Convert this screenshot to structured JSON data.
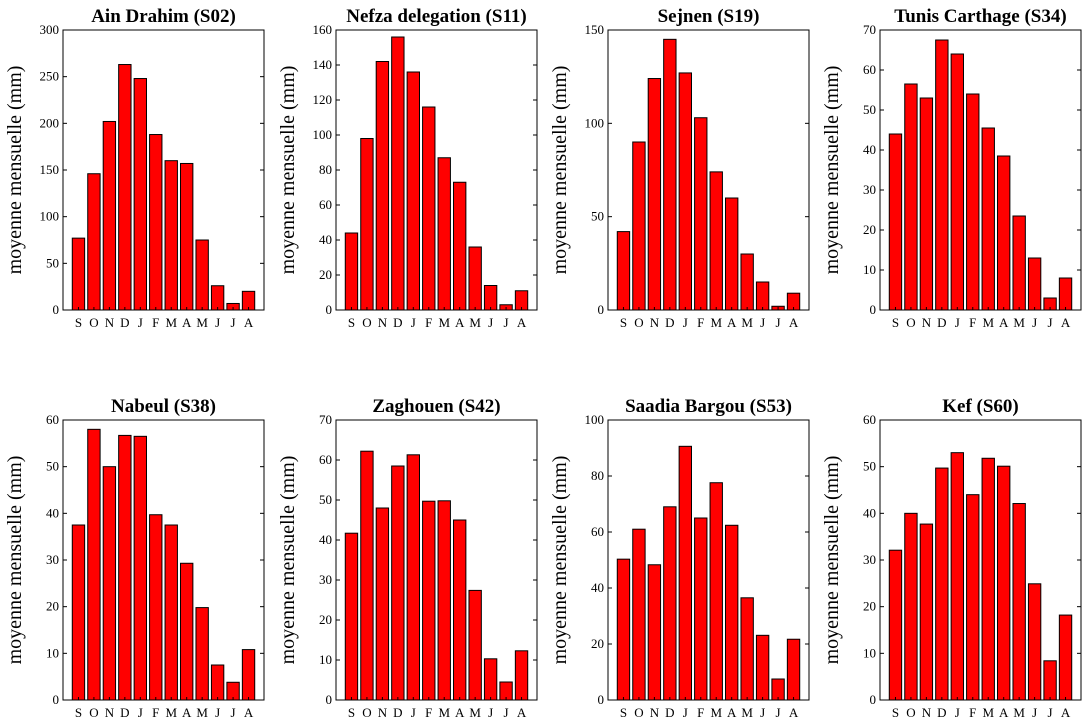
{
  "figure": {
    "bar_color": "#ff0000",
    "bar_edge_color": "#000000"
  },
  "chart_data": [
    {
      "type": "bar",
      "title": "Ain Drahim (S02)",
      "ylabel": "moyenne mensuelle (mm)",
      "categories": [
        "S",
        "O",
        "N",
        "D",
        "J",
        "F",
        "M",
        "A",
        "M",
        "J",
        "J",
        "A"
      ],
      "values": [
        77,
        146,
        202,
        263,
        248,
        188,
        160,
        157,
        75,
        26,
        7,
        20
      ],
      "ylim": [
        0,
        300
      ],
      "yticks": [
        0,
        50,
        100,
        150,
        200,
        250,
        300
      ]
    },
    {
      "type": "bar",
      "title": "Nefza delegation (S11)",
      "ylabel": "moyenne mensuelle (mm)",
      "categories": [
        "S",
        "O",
        "N",
        "D",
        "J",
        "F",
        "M",
        "A",
        "M",
        "J",
        "J",
        "A"
      ],
      "values": [
        44,
        98,
        142,
        156,
        136,
        116,
        87,
        73,
        36,
        14,
        3,
        11
      ],
      "ylim": [
        0,
        160
      ],
      "yticks": [
        0,
        20,
        40,
        60,
        80,
        100,
        120,
        140,
        160
      ]
    },
    {
      "type": "bar",
      "title": "Sejnen (S19)",
      "ylabel": "moyenne mensuelle (mm)",
      "categories": [
        "S",
        "O",
        "N",
        "D",
        "J",
        "F",
        "M",
        "A",
        "M",
        "J",
        "J",
        "A"
      ],
      "values": [
        42,
        90,
        124,
        145,
        127,
        103,
        74,
        60,
        30,
        15,
        2,
        9
      ],
      "ylim": [
        0,
        150
      ],
      "yticks": [
        0,
        50,
        100,
        150
      ]
    },
    {
      "type": "bar",
      "title": "Tunis Carthage (S34)",
      "ylabel": "moyenne mensuelle (mm)",
      "categories": [
        "S",
        "O",
        "N",
        "D",
        "J",
        "F",
        "M",
        "A",
        "M",
        "J",
        "J",
        "A"
      ],
      "values": [
        44,
        56.5,
        53,
        67.5,
        64,
        54,
        45.5,
        38.5,
        23.5,
        13,
        3,
        8
      ],
      "ylim": [
        0,
        70
      ],
      "yticks": [
        0,
        10,
        20,
        30,
        40,
        50,
        60,
        70
      ]
    },
    {
      "type": "bar",
      "title": "Nabeul (S38)",
      "ylabel": "moyenne mensuelle (mm)",
      "categories": [
        "S",
        "O",
        "N",
        "D",
        "J",
        "F",
        "M",
        "A",
        "M",
        "J",
        "J",
        "A"
      ],
      "values": [
        37.5,
        58,
        50,
        56.7,
        56.5,
        39.7,
        37.5,
        29.3,
        19.8,
        7.5,
        3.8,
        10.8
      ],
      "ylim": [
        0,
        60
      ],
      "yticks": [
        0,
        10,
        20,
        30,
        40,
        50,
        60
      ]
    },
    {
      "type": "bar",
      "title": "Zaghouen (S42)",
      "ylabel": "moyenne mensuelle (mm)",
      "categories": [
        "S",
        "O",
        "N",
        "D",
        "J",
        "F",
        "M",
        "A",
        "M",
        "J",
        "J",
        "A"
      ],
      "values": [
        41.7,
        62.2,
        48,
        58.5,
        61.3,
        49.7,
        49.8,
        45,
        27.4,
        10.3,
        4.5,
        12.3
      ],
      "ylim": [
        0,
        70
      ],
      "yticks": [
        0,
        10,
        20,
        30,
        40,
        50,
        60,
        70
      ]
    },
    {
      "type": "bar",
      "title": "Saadia Bargou (S53)",
      "ylabel": "moyenne mensuelle (mm)",
      "categories": [
        "S",
        "O",
        "N",
        "D",
        "J",
        "F",
        "M",
        "A",
        "M",
        "J",
        "J",
        "A"
      ],
      "values": [
        50.3,
        61,
        48.3,
        69,
        90.6,
        65,
        77.6,
        62.4,
        36.5,
        23.1,
        7.5,
        21.7
      ],
      "ylim": [
        0,
        100
      ],
      "yticks": [
        0,
        20,
        40,
        60,
        80,
        100
      ]
    },
    {
      "type": "bar",
      "title": "Kef (S60)",
      "ylabel": "moyenne mensuelle (mm)",
      "categories": [
        "S",
        "O",
        "N",
        "D",
        "J",
        "F",
        "M",
        "A",
        "M",
        "J",
        "J",
        "A"
      ],
      "values": [
        32.1,
        40,
        37.7,
        49.7,
        53,
        44,
        51.8,
        50.1,
        42.1,
        24.9,
        8.4,
        18.2
      ],
      "ylim": [
        0,
        60
      ],
      "yticks": [
        0,
        10,
        20,
        30,
        40,
        50,
        60
      ]
    }
  ]
}
